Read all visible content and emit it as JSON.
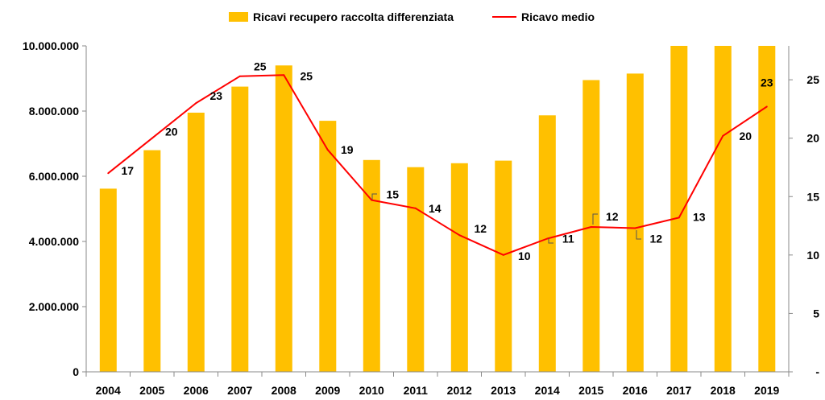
{
  "chart_data": {
    "type": "bar",
    "categories": [
      "2004",
      "2005",
      "2006",
      "2007",
      "2008",
      "2009",
      "2010",
      "2011",
      "2012",
      "2013",
      "2014",
      "2015",
      "2016",
      "2017",
      "2018",
      "2019"
    ],
    "series": [
      {
        "name": "Ricavi recupero raccolta differenziata",
        "type": "bar",
        "axis": "left",
        "color": "#FFC000",
        "values": [
          5620000,
          6800000,
          7950000,
          8750000,
          9400000,
          7700000,
          6500000,
          6280000,
          6400000,
          6480000,
          7870000,
          8950000,
          9150000,
          10000000,
          10000000,
          10000000
        ]
      },
      {
        "name": "Ricavo medio",
        "type": "line",
        "axis": "right",
        "color": "#FF0000",
        "values": [
          17,
          20,
          23,
          25.3,
          25.4,
          19,
          14.7,
          14,
          11.7,
          10,
          11.4,
          12.4,
          12.3,
          13.2,
          20.2,
          22.7
        ],
        "labels": [
          "17",
          "20",
          "23",
          "25",
          "25",
          "19",
          "15",
          "14",
          "12",
          "10",
          "11",
          "12",
          "12",
          "13",
          "20",
          "23"
        ]
      }
    ],
    "y_left": {
      "lim": [
        0,
        10000000
      ],
      "ticks": [
        0,
        2000000,
        4000000,
        6000000,
        8000000,
        10000000
      ],
      "tick_labels": [
        "0",
        "2.000.000",
        "4.000.000",
        "6.000.000",
        "8.000.000",
        "10.000.000"
      ]
    },
    "y_right": {
      "lim": [
        0,
        27.9
      ],
      "ticks": [
        0,
        5,
        10,
        15,
        20,
        25
      ],
      "tick_labels": [
        "-",
        "5",
        "10",
        "15",
        "20",
        "25"
      ]
    },
    "title": "",
    "xlabel": "",
    "ylabel": "",
    "legend": "top-center",
    "grid": false
  }
}
